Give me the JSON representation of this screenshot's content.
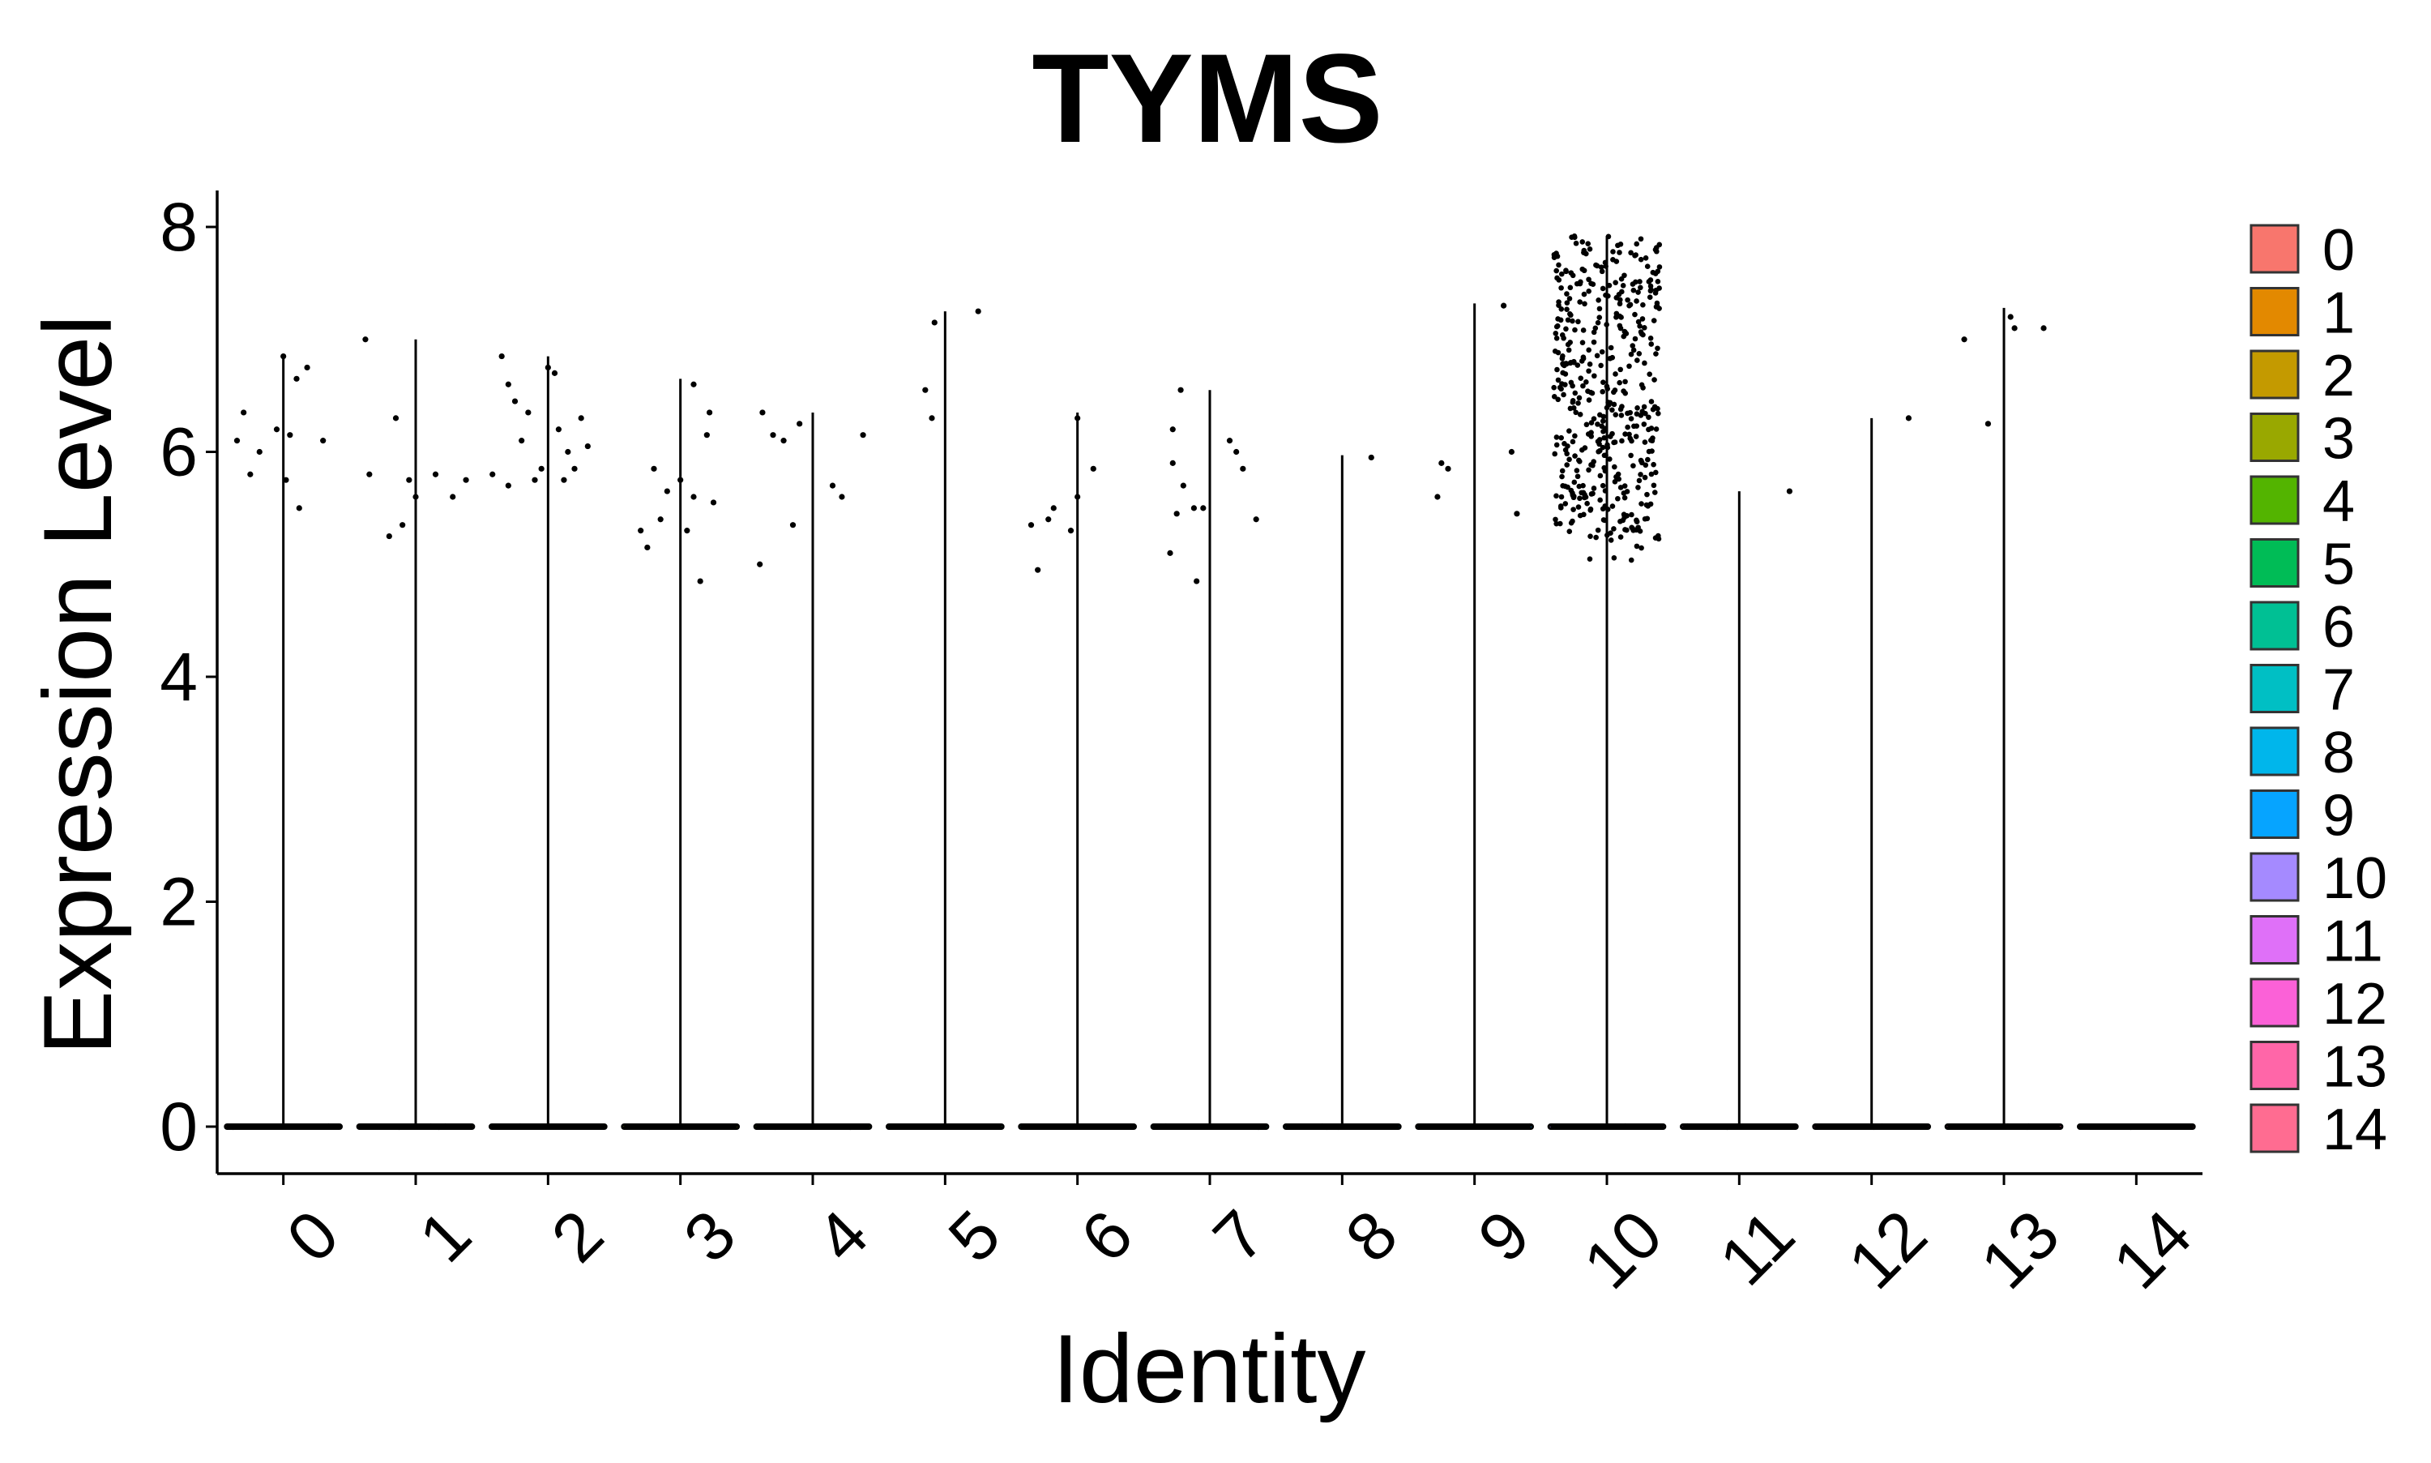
{
  "chart_data": {
    "type": "violin",
    "title": "TYMS",
    "xlabel": "Identity",
    "ylabel": "Expression Level",
    "ylim": [
      -0.4,
      8.3
    ],
    "yticks": [
      0,
      2,
      4,
      6,
      8
    ],
    "grid": false,
    "legend_position": "right",
    "categories": [
      "0",
      "1",
      "2",
      "3",
      "4",
      "5",
      "6",
      "7",
      "8",
      "9",
      "10",
      "11",
      "12",
      "13",
      "14"
    ],
    "colors": [
      "#F8766D",
      "#E38900",
      "#C49A00",
      "#99A800",
      "#53B400",
      "#00BC56",
      "#00C094",
      "#00BFC4",
      "#00B6EB",
      "#06A4FF",
      "#A58AFF",
      "#DF70F8",
      "#FB61D7",
      "#FF66A8",
      "#FF6C91"
    ],
    "series": [
      {
        "name": "0",
        "max": 6.85,
        "points": [
          [
            -0.35,
            6.1
          ],
          [
            -0.3,
            6.35
          ],
          [
            -0.25,
            5.8
          ],
          [
            -0.18,
            6.0
          ],
          [
            -0.05,
            6.2
          ],
          [
            0.0,
            6.85
          ],
          [
            0.02,
            5.75
          ],
          [
            0.05,
            6.15
          ],
          [
            0.1,
            6.65
          ],
          [
            0.12,
            5.5
          ],
          [
            0.18,
            6.75
          ],
          [
            0.3,
            6.1
          ]
        ]
      },
      {
        "name": "1",
        "max": 7.0,
        "points": [
          [
            -0.38,
            7.0
          ],
          [
            -0.35,
            5.8
          ],
          [
            -0.2,
            5.25
          ],
          [
            -0.15,
            6.3
          ],
          [
            -0.1,
            5.35
          ],
          [
            -0.05,
            5.75
          ],
          [
            0.0,
            5.6
          ],
          [
            0.15,
            5.8
          ],
          [
            0.28,
            5.6
          ],
          [
            0.38,
            5.75
          ]
        ]
      },
      {
        "name": "2",
        "max": 6.85,
        "points": [
          [
            -0.42,
            5.8
          ],
          [
            -0.35,
            6.85
          ],
          [
            -0.3,
            6.6
          ],
          [
            -0.3,
            5.7
          ],
          [
            -0.25,
            6.45
          ],
          [
            -0.2,
            6.1
          ],
          [
            -0.15,
            6.35
          ],
          [
            -0.1,
            5.75
          ],
          [
            -0.05,
            5.85
          ],
          [
            0.0,
            6.75
          ],
          [
            0.05,
            6.7
          ],
          [
            0.08,
            6.2
          ],
          [
            0.12,
            5.75
          ],
          [
            0.15,
            6.0
          ],
          [
            0.2,
            5.85
          ],
          [
            0.25,
            6.3
          ],
          [
            0.3,
            6.05
          ]
        ]
      },
      {
        "name": "3",
        "max": 6.65,
        "points": [
          [
            -0.3,
            5.3
          ],
          [
            -0.25,
            5.15
          ],
          [
            -0.2,
            5.85
          ],
          [
            -0.15,
            5.4
          ],
          [
            -0.1,
            5.65
          ],
          [
            0.0,
            5.75
          ],
          [
            0.05,
            5.3
          ],
          [
            0.1,
            5.6
          ],
          [
            0.1,
            6.6
          ],
          [
            0.15,
            4.85
          ],
          [
            0.2,
            6.15
          ],
          [
            0.22,
            6.35
          ],
          [
            0.25,
            5.55
          ]
        ]
      },
      {
        "name": "4",
        "max": 6.35,
        "points": [
          [
            -0.4,
            5.0
          ],
          [
            -0.38,
            6.35
          ],
          [
            -0.3,
            6.15
          ],
          [
            -0.22,
            6.1
          ],
          [
            -0.15,
            5.35
          ],
          [
            -0.1,
            6.25
          ],
          [
            0.15,
            5.7
          ],
          [
            0.22,
            5.6
          ],
          [
            0.38,
            6.15
          ]
        ]
      },
      {
        "name": "5",
        "max": 7.25,
        "points": [
          [
            -0.15,
            6.55
          ],
          [
            -0.1,
            6.3
          ],
          [
            -0.08,
            7.15
          ],
          [
            0.25,
            7.25
          ]
        ]
      },
      {
        "name": "6",
        "max": 6.35,
        "points": [
          [
            -0.35,
            5.35
          ],
          [
            -0.3,
            4.95
          ],
          [
            -0.22,
            5.4
          ],
          [
            -0.18,
            5.5
          ],
          [
            -0.05,
            5.3
          ],
          [
            0.0,
            5.6
          ],
          [
            0.0,
            6.3
          ],
          [
            0.12,
            5.85
          ]
        ]
      },
      {
        "name": "7",
        "max": 6.55,
        "points": [
          [
            -0.3,
            5.1
          ],
          [
            -0.28,
            6.2
          ],
          [
            -0.28,
            5.9
          ],
          [
            -0.25,
            5.45
          ],
          [
            -0.22,
            6.55
          ],
          [
            -0.2,
            5.7
          ],
          [
            -0.12,
            5.5
          ],
          [
            -0.1,
            4.85
          ],
          [
            -0.05,
            5.5
          ],
          [
            0.15,
            6.1
          ],
          [
            0.2,
            6.0
          ],
          [
            0.25,
            5.85
          ],
          [
            0.35,
            5.4
          ]
        ]
      },
      {
        "name": "8",
        "max": 5.97,
        "points": [
          [
            0.22,
            5.95
          ]
        ]
      },
      {
        "name": "9",
        "max": 7.32,
        "points": [
          [
            -0.28,
            5.6
          ],
          [
            -0.25,
            5.9
          ],
          [
            -0.2,
            5.85
          ],
          [
            0.22,
            7.3
          ],
          [
            0.28,
            6.0
          ],
          [
            0.32,
            5.45
          ]
        ]
      },
      {
        "name": "10",
        "max": 7.92,
        "cluster": {
          "count": 460,
          "min": 4.75,
          "max": 7.92,
          "spread": 0.4
        }
      },
      {
        "name": "11",
        "max": 5.65,
        "points": [
          [
            0.38,
            5.65
          ]
        ]
      },
      {
        "name": "12",
        "max": 6.3,
        "points": [
          [
            0.28,
            6.3
          ]
        ]
      },
      {
        "name": "13",
        "max": 7.28,
        "points": [
          [
            -0.3,
            7.0
          ],
          [
            -0.12,
            6.25
          ],
          [
            0.05,
            7.2
          ],
          [
            0.08,
            7.1
          ],
          [
            0.3,
            7.1
          ]
        ]
      },
      {
        "name": "14",
        "max": 0.0,
        "points": []
      }
    ]
  }
}
